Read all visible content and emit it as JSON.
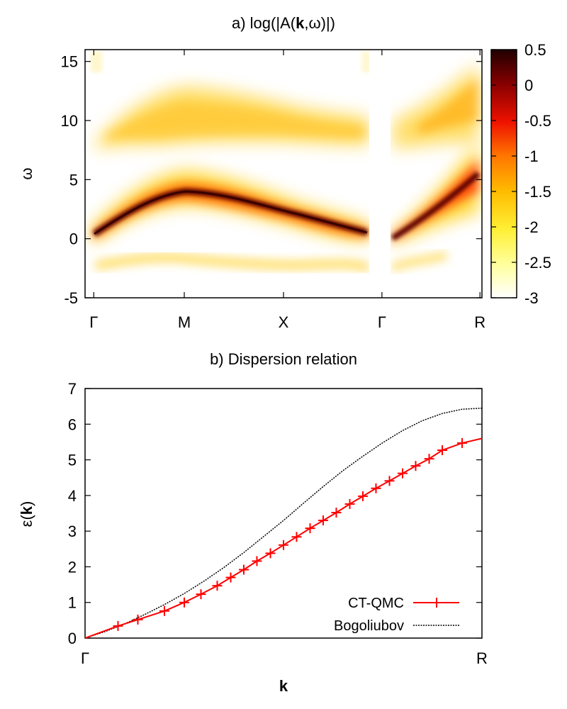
{
  "chart_data": [
    {
      "type": "heatmap",
      "title_prefix": "a) log(|A(",
      "title_bold": "k",
      "title_suffix": ",ω)|)",
      "ylabel": "ω",
      "ylim": [
        -5,
        16
      ],
      "yticks": [
        -5,
        0,
        5,
        10,
        15
      ],
      "xticks": [
        "Γ",
        "M",
        "X",
        "Γ",
        "R"
      ],
      "colorbar": {
        "range": [
          -3,
          0.5
        ],
        "ticks": [
          "0.5",
          "0",
          "-0.5",
          "-1",
          "-1.5",
          "-2",
          "-2.5",
          "-3"
        ]
      },
      "bands": {
        "main_dispersion": {
          "path": [
            "Γ",
            "M",
            "X",
            "Γ"
          ],
          "omega": [
            0.3,
            3.2,
            2.0,
            0.4
          ],
          "omega_GR": [
            0.3,
            5.5
          ]
        },
        "upper_band": {
          "omega_center": [
            9.5,
            11.0,
            10.0,
            9.5
          ],
          "omega_GR": [
            9.5,
            12.0
          ]
        },
        "lower_band": {
          "omega": -2.4
        }
      }
    },
    {
      "type": "line",
      "title": "b) Dispersion relation",
      "xlabel": "k",
      "ylabel_prefix": "ε(",
      "ylabel_bold": "k",
      "ylabel_suffix": ")",
      "ylim": [
        0,
        7
      ],
      "yticks": [
        0,
        1,
        2,
        3,
        4,
        5,
        6,
        7
      ],
      "xticks": [
        "Γ",
        "R"
      ],
      "xlim": [
        0,
        1
      ],
      "series": [
        {
          "name": "CT-QMC",
          "color": "#ff0000",
          "x": [
            0.0,
            0.083,
            0.133,
            0.2,
            0.25,
            0.292,
            0.333,
            0.367,
            0.4,
            0.433,
            0.467,
            0.5,
            0.533,
            0.567,
            0.6,
            0.633,
            0.667,
            0.7,
            0.733,
            0.767,
            0.8,
            0.833,
            0.867,
            0.9,
            0.95,
            1.0
          ],
          "y": [
            0.0,
            0.34,
            0.52,
            0.76,
            1.0,
            1.23,
            1.47,
            1.7,
            1.92,
            2.16,
            2.38,
            2.61,
            2.84,
            3.08,
            3.3,
            3.52,
            3.76,
            3.98,
            4.2,
            4.41,
            4.62,
            4.83,
            5.03,
            5.27,
            5.47,
            5.6
          ]
        },
        {
          "name": "Bogoliubov",
          "color": "#000000",
          "x": [
            0.0,
            0.05,
            0.1,
            0.15,
            0.2,
            0.25,
            0.3,
            0.35,
            0.4,
            0.45,
            0.5,
            0.55,
            0.6,
            0.65,
            0.7,
            0.75,
            0.8,
            0.85,
            0.9,
            0.95,
            1.0
          ],
          "y": [
            0.0,
            0.18,
            0.4,
            0.66,
            0.94,
            1.25,
            1.6,
            1.98,
            2.4,
            2.85,
            3.3,
            3.78,
            4.25,
            4.7,
            5.1,
            5.48,
            5.82,
            6.1,
            6.3,
            6.42,
            6.45
          ]
        }
      ],
      "marker_x": [
        0.083,
        0.133,
        0.2,
        0.25,
        0.292,
        0.333,
        0.367,
        0.4,
        0.433,
        0.467,
        0.5,
        0.533,
        0.567,
        0.6,
        0.633,
        0.667,
        0.7,
        0.733,
        0.767,
        0.8,
        0.833,
        0.867,
        0.9,
        0.95
      ]
    }
  ]
}
